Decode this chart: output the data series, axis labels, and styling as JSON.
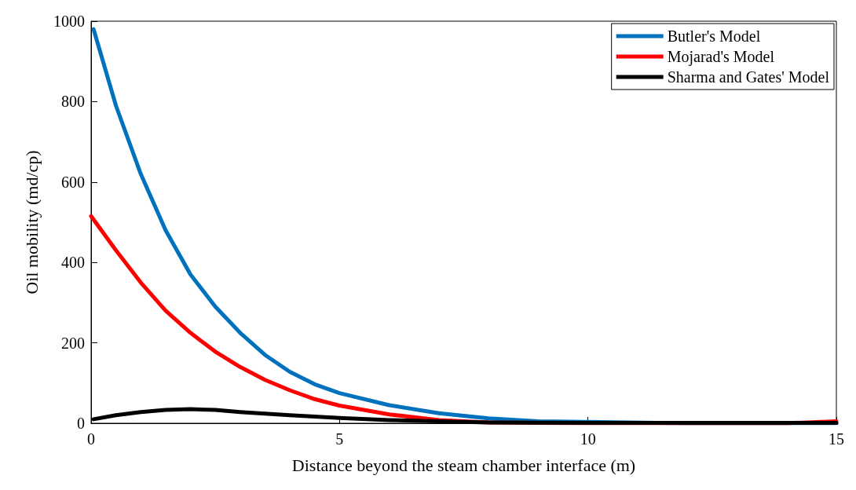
{
  "chart_data": {
    "type": "line",
    "xlabel": "Distance beyond the steam chamber interface (m)",
    "ylabel": "Oil mobility (md/cp)",
    "xlim": [
      0,
      15
    ],
    "xticks": [
      0,
      5,
      10,
      15
    ],
    "ylim": [
      0,
      1000
    ],
    "yticks": [
      0,
      200,
      400,
      600,
      800,
      1000
    ],
    "grid": false,
    "legend": "top right",
    "marker": "none",
    "line_style": "solid",
    "series": [
      {
        "name": "Butler's Model",
        "color": "#0072bd",
        "x": [
          0.05,
          0.5,
          1,
          1.5,
          2,
          2.5,
          3,
          3.5,
          4,
          4.5,
          5,
          6,
          7,
          8,
          9,
          12,
          15
        ],
        "values": [
          980,
          790,
          620,
          480,
          370,
          290,
          225,
          170,
          128,
          97,
          75,
          45,
          25,
          12,
          5,
          0,
          0
        ]
      },
      {
        "name": "Mojarad's Model",
        "color": "#ff0000",
        "x": [
          0,
          0.5,
          1,
          1.5,
          2,
          2.5,
          3,
          3.5,
          4,
          4.5,
          5,
          6,
          7,
          8,
          10,
          14,
          15
        ],
        "values": [
          515,
          430,
          350,
          280,
          225,
          178,
          140,
          108,
          82,
          60,
          44,
          22,
          8,
          2,
          0,
          0,
          5
        ]
      },
      {
        "name": "Sharma and Gates' Model",
        "color": "#000000",
        "x": [
          0.05,
          0.5,
          1,
          1.5,
          2,
          2.5,
          3,
          4,
          5,
          6,
          7,
          8,
          10,
          15
        ],
        "values": [
          10,
          20,
          28,
          33,
          35,
          33,
          28,
          20,
          13,
          8,
          5,
          2,
          1,
          1
        ]
      }
    ]
  }
}
